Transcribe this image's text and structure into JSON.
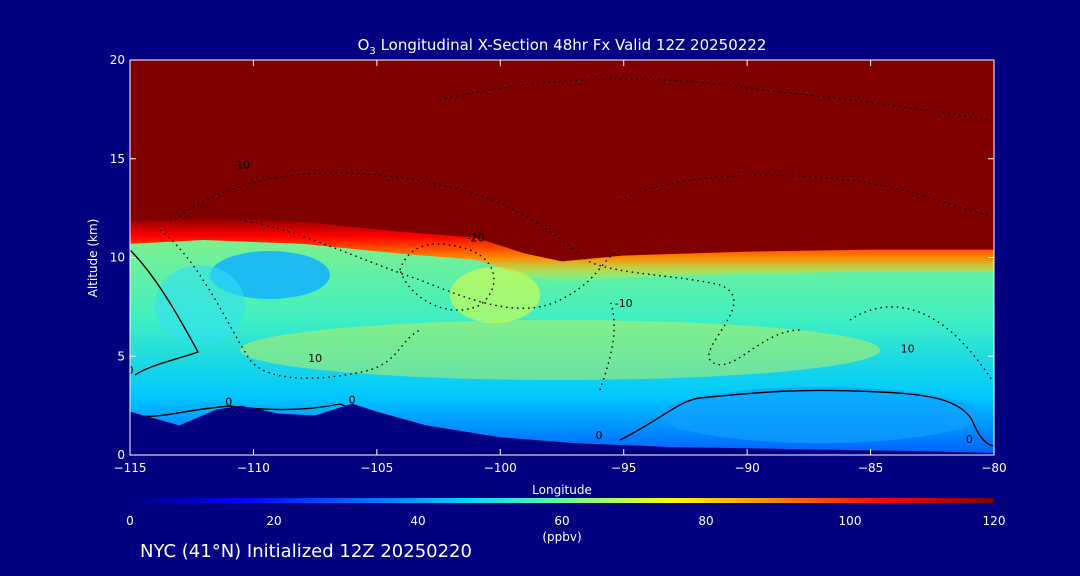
{
  "chart_data": {
    "type": "heatmap",
    "title_main": "O",
    "title_sub": "3",
    "title_rest": " Longitudinal X-Section 48hr  Fx Valid 12Z 20250222",
    "xlabel": "Longitude",
    "ylabel": "Altitude (km)",
    "xlim": [
      -115,
      -80
    ],
    "ylim": [
      0,
      20
    ],
    "x_ticks": [
      -115,
      -110,
      -105,
      -100,
      -95,
      -90,
      -85,
      -80
    ],
    "x_tick_labels": [
      "−115",
      "−110",
      "−105",
      "−100",
      "−95",
      "−90",
      "−85",
      "−80"
    ],
    "y_ticks": [
      0,
      5,
      10,
      15,
      20
    ],
    "y_tick_labels": [
      "0",
      "5",
      "10",
      "15",
      "20"
    ],
    "colorbar": {
      "label": "(ppbv)",
      "min": 0,
      "max": 120,
      "ticks": [
        0,
        20,
        40,
        60,
        80,
        100,
        120
      ],
      "tick_labels": [
        "0",
        "20",
        "40",
        "60",
        "80",
        "100",
        "120"
      ],
      "colors": [
        "#00007f",
        "#0000ff",
        "#0080ff",
        "#00ffff",
        "#80ff80",
        "#ffff00",
        "#ff8000",
        "#ff0000",
        "#800000"
      ]
    },
    "terrain_km": [
      {
        "lon": -115,
        "alt": 2.2
      },
      {
        "lon": -113,
        "alt": 1.5
      },
      {
        "lon": -111.5,
        "alt": 2.3
      },
      {
        "lon": -110.5,
        "alt": 2.5
      },
      {
        "lon": -109,
        "alt": 2.1
      },
      {
        "lon": -107.5,
        "alt": 2.0
      },
      {
        "lon": -106,
        "alt": 2.6
      },
      {
        "lon": -105,
        "alt": 2.2
      },
      {
        "lon": -103,
        "alt": 1.5
      },
      {
        "lon": -100,
        "alt": 0.9
      },
      {
        "lon": -97,
        "alt": 0.6
      },
      {
        "lon": -93,
        "alt": 0.4
      },
      {
        "lon": -88,
        "alt": 0.3
      },
      {
        "lon": -83,
        "alt": 0.2
      },
      {
        "lon": -80,
        "alt": 0.1
      }
    ],
    "tropopause_km": [
      {
        "lon": -115,
        "alt": 11.8
      },
      {
        "lon": -112,
        "alt": 12.0
      },
      {
        "lon": -108,
        "alt": 11.8
      },
      {
        "lon": -104,
        "alt": 11.3
      },
      {
        "lon": -101,
        "alt": 11.0
      },
      {
        "lon": -99,
        "alt": 10.2
      },
      {
        "lon": -97.5,
        "alt": 9.8
      },
      {
        "lon": -95,
        "alt": 10.1
      },
      {
        "lon": -90,
        "alt": 10.3
      },
      {
        "lon": -85,
        "alt": 10.4
      },
      {
        "lon": -80,
        "alt": 10.4
      }
    ],
    "contour_labels": [
      {
        "text": "-10",
        "lon": -110.5,
        "alt": 14.5
      },
      {
        "text": "-20",
        "lon": -101,
        "alt": 10.8
      },
      {
        "text": "-10",
        "lon": -95,
        "alt": 7.5
      },
      {
        "text": "10",
        "lon": -107.5,
        "alt": 4.7
      },
      {
        "text": "10",
        "lon": -83.5,
        "alt": 5.2
      },
      {
        "text": "0",
        "lon": -115,
        "alt": 4.1
      },
      {
        "text": "0",
        "lon": -111,
        "alt": 2.5
      },
      {
        "text": "0",
        "lon": -106,
        "alt": 2.6
      },
      {
        "text": "0",
        "lon": -96,
        "alt": 0.8
      },
      {
        "text": "0",
        "lon": -81,
        "alt": 0.6
      }
    ]
  },
  "footer": {
    "text": "NYC (41°N) Initialized 12Z 20250220"
  }
}
